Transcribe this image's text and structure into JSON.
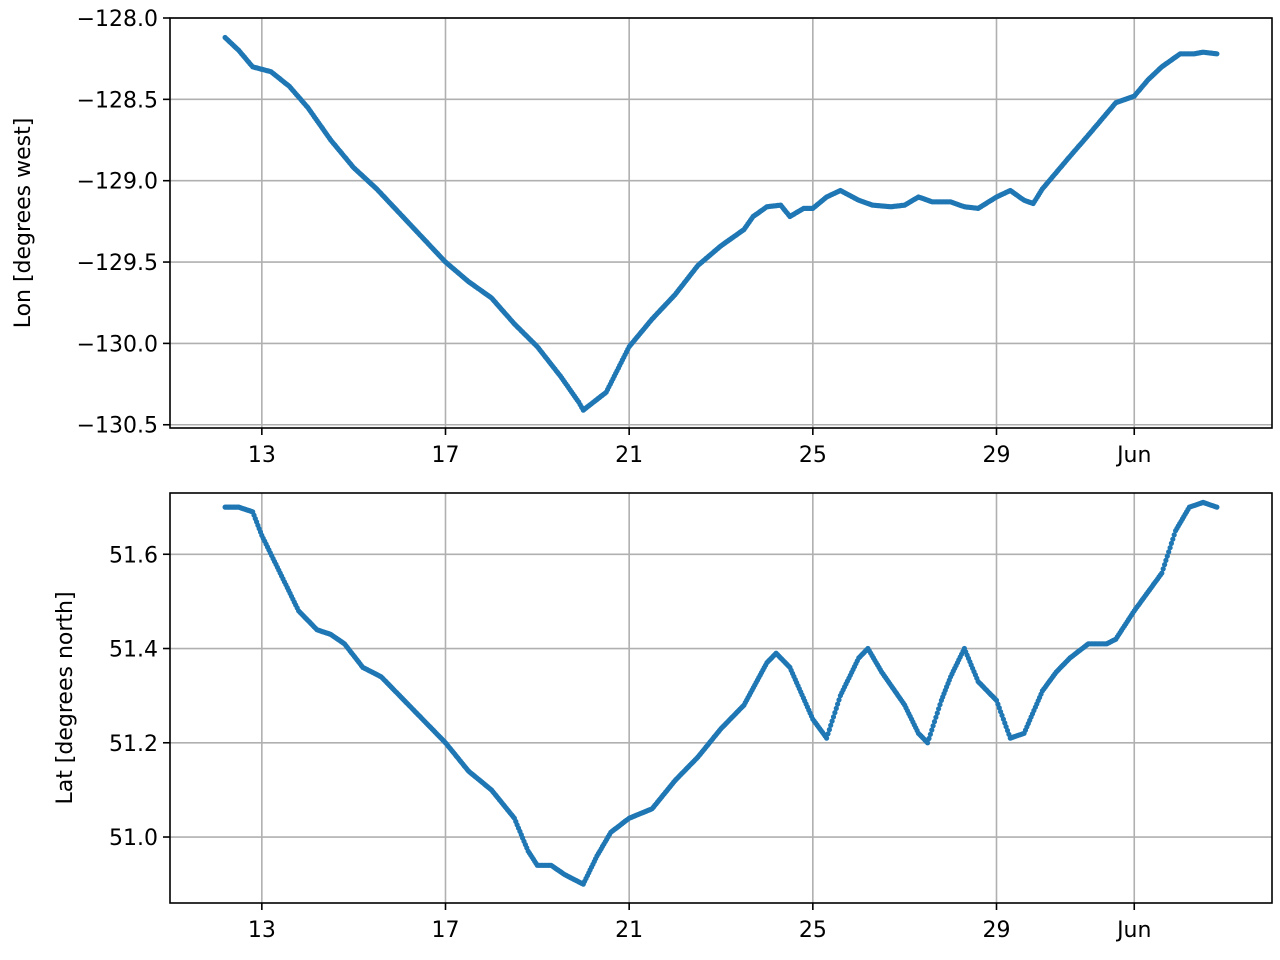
{
  "chart_data": [
    {
      "type": "scatter",
      "ylabel": "Lon [degrees west]",
      "xlabel": "",
      "x_ticks": [
        "13",
        "17",
        "21",
        "25",
        "29",
        "Jun"
      ],
      "x_tick_days": [
        13,
        17,
        21,
        25,
        29,
        32
      ],
      "xlim": [
        11.0,
        35.0
      ],
      "y_ticks": [
        "−128.0",
        "−128.5",
        "−129.0",
        "−129.5",
        "−130.0",
        "−130.5"
      ],
      "y_tick_values": [
        -128.0,
        -128.5,
        -129.0,
        -129.5,
        -130.0,
        -130.5
      ],
      "ylim": [
        -130.52,
        -128.0
      ],
      "grid": true,
      "marker_color": "#1f77b4",
      "series": [
        {
          "x": [
            12.2,
            12.5,
            12.8,
            13.2,
            13.6,
            14.0,
            14.5,
            15.0,
            15.5,
            16.0,
            16.5,
            17.0,
            17.5,
            18.0,
            18.5,
            19.0,
            19.5,
            19.9,
            20.0,
            20.5,
            21.0,
            21.5,
            22.0,
            22.5,
            23.0,
            23.5,
            23.7,
            24.0,
            24.3,
            24.5,
            24.8,
            25.0,
            25.3,
            25.6,
            26.0,
            26.3,
            26.7,
            27.0,
            27.3,
            27.6,
            28.0,
            28.3,
            28.6,
            29.0,
            29.3,
            29.6,
            29.8,
            30.0,
            30.3,
            30.6,
            31.0,
            31.3,
            31.6,
            32.0,
            32.3,
            32.6,
            32.8,
            33.0,
            33.3,
            33.5,
            33.8
          ],
          "y": [
            -128.12,
            -128.2,
            -128.3,
            -128.33,
            -128.42,
            -128.55,
            -128.75,
            -128.92,
            -129.05,
            -129.2,
            -129.35,
            -129.5,
            -129.62,
            -129.72,
            -129.88,
            -130.02,
            -130.2,
            -130.36,
            -130.41,
            -130.3,
            -130.02,
            -129.85,
            -129.7,
            -129.52,
            -129.4,
            -129.3,
            -129.22,
            -129.16,
            -129.15,
            -129.22,
            -129.17,
            -129.17,
            -129.1,
            -129.06,
            -129.12,
            -129.15,
            -129.16,
            -129.15,
            -129.1,
            -129.13,
            -129.13,
            -129.16,
            -129.17,
            -129.1,
            -129.06,
            -129.12,
            -129.14,
            -129.05,
            -128.95,
            -128.85,
            -128.72,
            -128.62,
            -128.52,
            -128.48,
            -128.38,
            -128.3,
            -128.26,
            -128.22,
            -128.22,
            -128.21,
            -128.22
          ]
        }
      ]
    },
    {
      "type": "scatter",
      "ylabel": "Lat [degrees north]",
      "xlabel": "",
      "x_ticks": [
        "13",
        "17",
        "21",
        "25",
        "29",
        "Jun"
      ],
      "x_tick_days": [
        13,
        17,
        21,
        25,
        29,
        32
      ],
      "xlim": [
        11.0,
        35.0
      ],
      "y_ticks": [
        "51.6",
        "51.4",
        "51.2",
        "51.0"
      ],
      "y_tick_values": [
        51.6,
        51.4,
        51.2,
        51.0
      ],
      "ylim": [
        50.86,
        51.73
      ],
      "grid": true,
      "marker_color": "#1f77b4",
      "series": [
        {
          "x": [
            12.2,
            12.5,
            12.8,
            13.0,
            13.4,
            13.8,
            14.2,
            14.5,
            14.8,
            15.2,
            15.6,
            16.0,
            16.4,
            16.8,
            17.0,
            17.5,
            18.0,
            18.5,
            18.8,
            19.0,
            19.3,
            19.6,
            20.0,
            20.3,
            20.6,
            21.0,
            21.5,
            22.0,
            22.5,
            23.0,
            23.5,
            24.0,
            24.2,
            24.5,
            25.0,
            25.3,
            25.6,
            26.0,
            26.2,
            26.5,
            27.0,
            27.3,
            27.5,
            27.8,
            28.0,
            28.3,
            28.6,
            29.0,
            29.3,
            29.6,
            30.0,
            30.3,
            30.6,
            31.0,
            31.4,
            31.6,
            32.0,
            32.3,
            32.6,
            32.9,
            33.2,
            33.5,
            33.8
          ],
          "y": [
            51.7,
            51.7,
            51.69,
            51.64,
            51.56,
            51.48,
            51.44,
            51.43,
            51.41,
            51.36,
            51.34,
            51.3,
            51.26,
            51.22,
            51.2,
            51.14,
            51.1,
            51.04,
            50.97,
            50.94,
            50.94,
            50.92,
            50.9,
            50.96,
            51.01,
            51.04,
            51.06,
            51.12,
            51.17,
            51.23,
            51.28,
            51.37,
            51.39,
            51.36,
            51.25,
            51.21,
            51.3,
            51.38,
            51.4,
            51.35,
            51.28,
            51.22,
            51.2,
            51.29,
            51.34,
            51.4,
            51.33,
            51.29,
            51.21,
            51.22,
            51.31,
            51.35,
            51.38,
            51.41,
            51.41,
            51.42,
            51.48,
            51.52,
            51.56,
            51.65,
            51.7,
            51.71,
            51.7
          ]
        }
      ]
    }
  ]
}
